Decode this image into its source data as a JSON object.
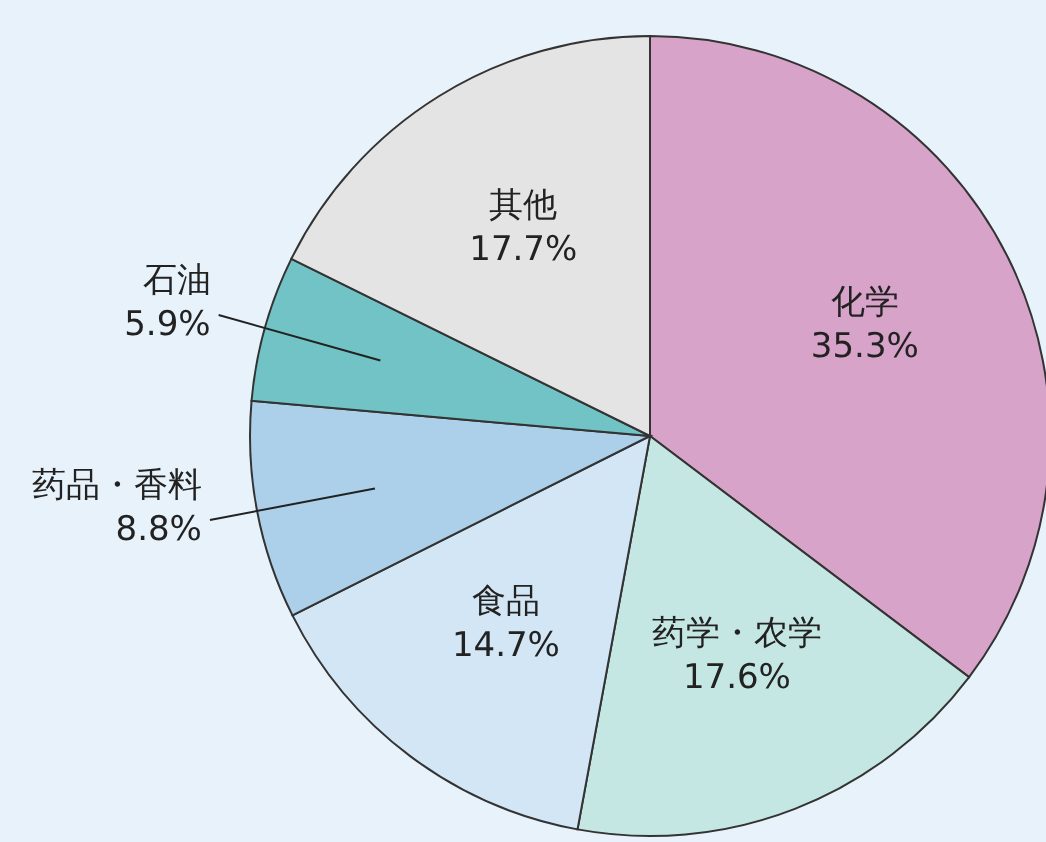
{
  "chart_data": {
    "type": "pie",
    "categories": [
      "化学",
      "药学・农学",
      "食品",
      "药品・香料",
      "石油",
      "其他"
    ],
    "values": [
      35.3,
      17.6,
      14.7,
      8.8,
      5.9,
      17.7
    ],
    "value_labels": [
      "35.3%",
      "17.6%",
      "14.7%",
      "8.8%",
      "5.9%",
      "17.7%"
    ],
    "colors": [
      "#d8a3c9",
      "#c5e7e4",
      "#d2e6f5",
      "#acd0ea",
      "#72c3c6",
      "#e4e4e4"
    ]
  }
}
